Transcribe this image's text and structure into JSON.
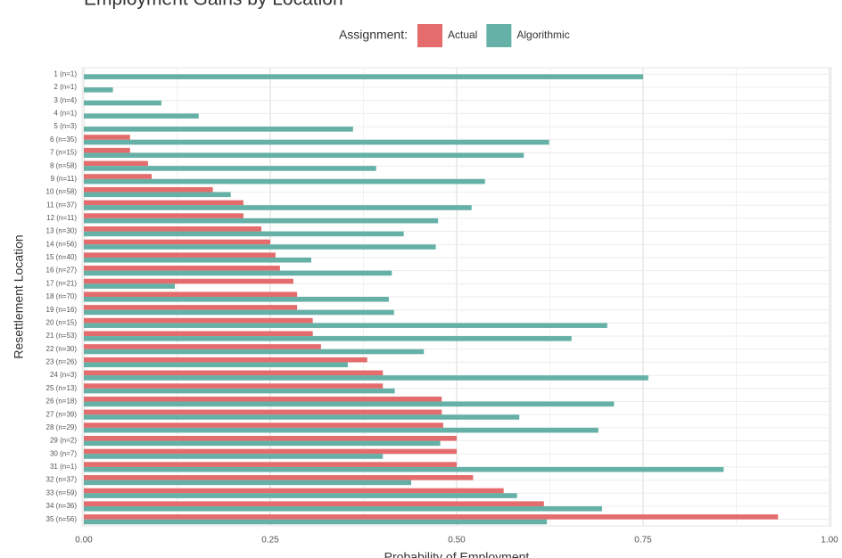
{
  "chart_data": {
    "type": "bar",
    "orientation": "horizontal",
    "title": "Employment Gains by Location",
    "x_label": "Probability of Employment",
    "y_label": "Resettlement Location",
    "legend_title": "Assignment:",
    "legend_position": "top",
    "grid": true,
    "categories": [
      "1 (n=1)",
      "2 (n=1)",
      "3 (n=4)",
      "4 (n=1)",
      "5 (n=3)",
      "6 (n=35)",
      "7 (n=15)",
      "8 (n=58)",
      "9 (n=11)",
      "10 (n=58)",
      "11 (n=37)",
      "12 (n=11)",
      "13 (n=30)",
      "14 (n=56)",
      "15 (n=40)",
      "16 (n=27)",
      "17 (n=21)",
      "18 (n=70)",
      "19 (n=16)",
      "20 (n=15)",
      "21 (n=53)",
      "22 (n=30)",
      "23 (n=26)",
      "24 (n=3)",
      "25 (n=13)",
      "26 (n=18)",
      "27 (n=39)",
      "28 (n=29)",
      "29 (n=2)",
      "30 (n=7)",
      "31 (n=1)",
      "32 (n=37)",
      "33 (n=59)",
      "34 (n=36)",
      "35 (n=56)"
    ],
    "series": [
      {
        "name": "Actual",
        "color": "#e46c6c",
        "values": [
          0,
          0,
          0,
          0,
          0,
          0.062,
          0.062,
          0.086,
          0.091,
          0.173,
          0.214,
          0.214,
          0.238,
          0.25,
          0.257,
          0.263,
          0.281,
          0.286,
          0.286,
          0.307,
          0.307,
          0.318,
          0.38,
          0.401,
          0.401,
          0.48,
          0.48,
          0.482,
          0.5,
          0.5,
          0.5,
          0.522,
          0.563,
          0.617,
          0.931
        ]
      },
      {
        "name": "Algorithmic",
        "color": "#66b1a7",
        "values": [
          0.75,
          0.039,
          0.104,
          0.154,
          0.361,
          0.624,
          0.59,
          0.392,
          0.538,
          0.197,
          0.52,
          0.475,
          0.429,
          0.472,
          0.305,
          0.413,
          0.122,
          0.409,
          0.416,
          0.702,
          0.654,
          0.456,
          0.354,
          0.757,
          0.417,
          0.711,
          0.584,
          0.69,
          0.478,
          0.401,
          0.858,
          0.439,
          0.581,
          0.695,
          0.621
        ]
      }
    ],
    "xlim": [
      0,
      1
    ],
    "xticks": [
      {
        "value": 0,
        "label": "0.00"
      },
      0.25,
      {
        "value": 0.5,
        "label": "0.50"
      },
      0.75,
      {
        "value": 1,
        "label": "1.00"
      }
    ]
  }
}
